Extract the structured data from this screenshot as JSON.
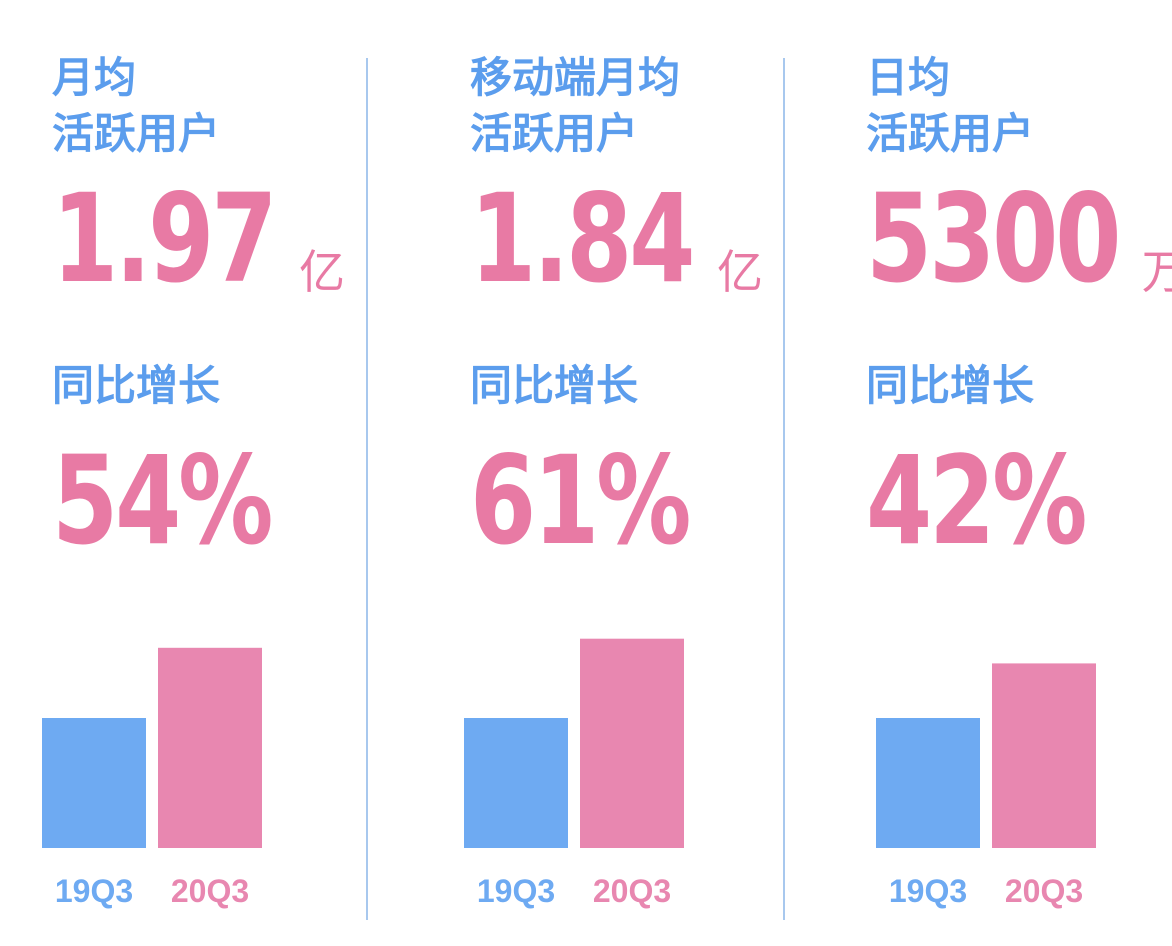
{
  "colors": {
    "blue": "#5b9ded",
    "blue_bar": "#6eaaf2",
    "pink": "#e87aa4",
    "pink_bar": "#e887b0",
    "divider": "#a8c8ee"
  },
  "panels": [
    {
      "title_lines": [
        "月均",
        "活跃用户"
      ],
      "value": "1.97",
      "unit": "亿",
      "growth_label": "同比增长",
      "growth_value": "54%"
    },
    {
      "title_lines": [
        "移动端月均",
        "活跃用户"
      ],
      "value": "1.84",
      "unit": "亿",
      "growth_label": "同比增长",
      "growth_value": "61%"
    },
    {
      "title_lines": [
        "日均",
        "活跃用户"
      ],
      "value": "5300",
      "unit": "万",
      "growth_label": "同比增长",
      "growth_value": "42%"
    }
  ],
  "chart_data": [
    {
      "type": "bar",
      "categories": [
        "19Q3",
        "20Q3"
      ],
      "values": [
        1,
        1.54
      ],
      "ylim": [
        0,
        1.6
      ],
      "grid": false,
      "legend": "none"
    },
    {
      "type": "bar",
      "categories": [
        "19Q3",
        "20Q3"
      ],
      "values": [
        1,
        1.61
      ],
      "ylim": [
        0,
        1.6
      ],
      "grid": false,
      "legend": "none"
    },
    {
      "type": "bar",
      "categories": [
        "19Q3",
        "20Q3"
      ],
      "values": [
        1,
        1.42
      ],
      "ylim": [
        0,
        1.6
      ],
      "grid": false,
      "legend": "none"
    }
  ]
}
